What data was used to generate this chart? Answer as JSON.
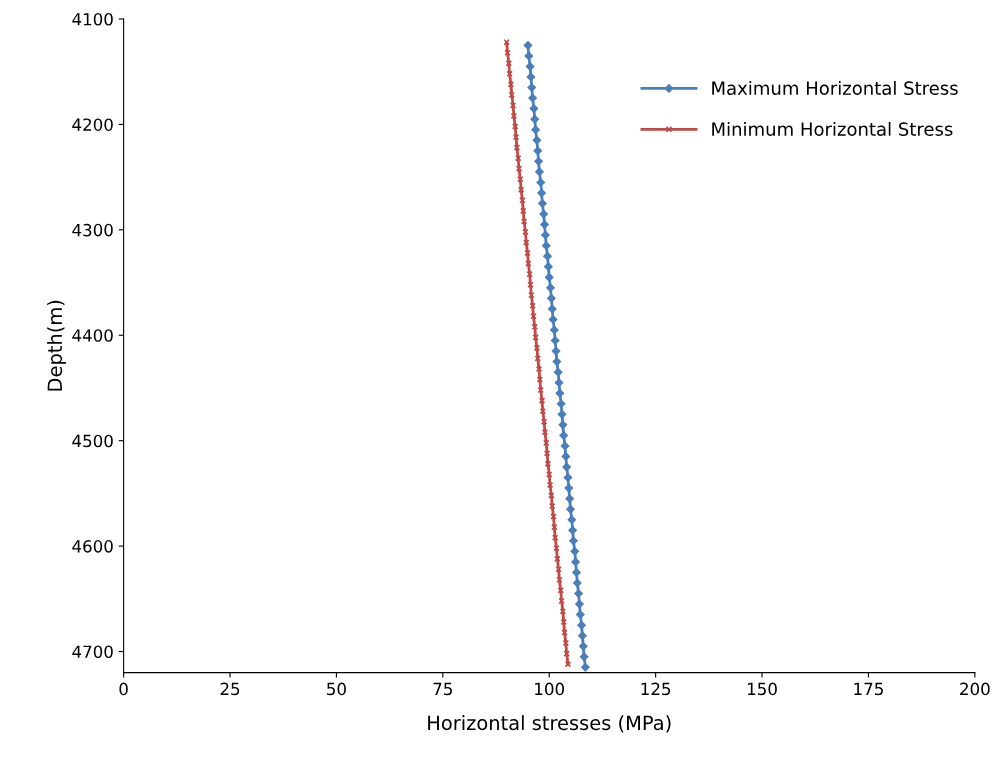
{
  "chart_data": {
    "type": "line",
    "xlabel": "Horizontal stresses (MPa)",
    "ylabel": "Depth(m)",
    "xlim": [
      0,
      200
    ],
    "xticks": [
      0,
      25,
      50,
      75,
      100,
      125,
      150,
      175,
      200
    ],
    "ylim": [
      4720,
      4100
    ],
    "yticks": [
      4100,
      4200,
      4300,
      4400,
      4500,
      4600,
      4700
    ],
    "grid": false,
    "legend": "top right",
    "line_style": "solid",
    "series": [
      {
        "name": "Maximum Horizontal Stress",
        "color": "#4a7ebb",
        "marker": "diamond",
        "x": [
          95.0,
          95.2,
          95.5,
          95.7,
          95.9,
          96.1,
          96.4,
          96.6,
          96.8,
          97.1,
          97.3,
          97.5,
          97.7,
          98.0,
          98.2,
          98.4,
          98.7,
          98.9,
          99.1,
          99.3,
          99.6,
          99.8,
          100.0,
          100.3,
          100.5,
          100.7,
          100.9,
          101.2,
          101.4,
          101.6,
          101.8,
          102.1,
          102.3,
          102.5,
          102.8,
          103.0,
          103.2,
          103.4,
          103.7,
          103.9,
          104.1,
          104.4,
          104.6,
          104.8,
          105.0,
          105.3,
          105.5,
          105.7,
          106.0,
          106.2,
          106.4,
          106.6,
          106.9,
          107.1,
          107.3,
          107.6,
          107.8,
          108.0,
          108.2,
          108.5
        ],
        "values": [
          4125,
          4135,
          4145,
          4155,
          4165,
          4175,
          4185,
          4195,
          4205,
          4215,
          4225,
          4235,
          4245,
          4255,
          4265,
          4275,
          4285,
          4295,
          4305,
          4315,
          4325,
          4335,
          4345,
          4355,
          4365,
          4375,
          4385,
          4395,
          4405,
          4415,
          4425,
          4435,
          4445,
          4455,
          4465,
          4475,
          4485,
          4495,
          4505,
          4515,
          4525,
          4535,
          4545,
          4555,
          4565,
          4575,
          4585,
          4595,
          4605,
          4615,
          4625,
          4635,
          4645,
          4655,
          4665,
          4675,
          4685,
          4695,
          4705,
          4715
        ]
      },
      {
        "name": "Minimum Horizontal Stress",
        "color": "#be4b48",
        "marker": "cross",
        "x": [
          90.0,
          90.2,
          90.5,
          90.7,
          91.0,
          91.2,
          91.5,
          91.7,
          92.0,
          92.2,
          92.4,
          92.7,
          92.9,
          93.2,
          93.4,
          93.7,
          93.9,
          94.1,
          94.4,
          94.6,
          94.9,
          95.1,
          95.4,
          95.6,
          95.8,
          96.1,
          96.3,
          96.6,
          96.8,
          97.1,
          97.3,
          97.6,
          97.8,
          98.0,
          98.3,
          98.5,
          98.8,
          99.0,
          99.3,
          99.5,
          99.7,
          100.0,
          100.2,
          100.5,
          100.7,
          101.0,
          101.2,
          101.4,
          101.7,
          101.9,
          102.2,
          102.4,
          102.7,
          102.9,
          103.2,
          103.4,
          103.6,
          103.9,
          104.1,
          104.4
        ],
        "values": [
          4122,
          4132,
          4142,
          4152,
          4162,
          4172,
          4182,
          4192,
          4202,
          4212,
          4222,
          4232,
          4242,
          4252,
          4262,
          4272,
          4282,
          4292,
          4302,
          4312,
          4322,
          4332,
          4342,
          4352,
          4362,
          4372,
          4382,
          4392,
          4402,
          4412,
          4422,
          4432,
          4442,
          4452,
          4462,
          4472,
          4482,
          4492,
          4502,
          4512,
          4522,
          4532,
          4542,
          4552,
          4562,
          4572,
          4582,
          4592,
          4602,
          4612,
          4622,
          4632,
          4642,
          4652,
          4662,
          4672,
          4682,
          4692,
          4702,
          4712
        ]
      }
    ]
  }
}
